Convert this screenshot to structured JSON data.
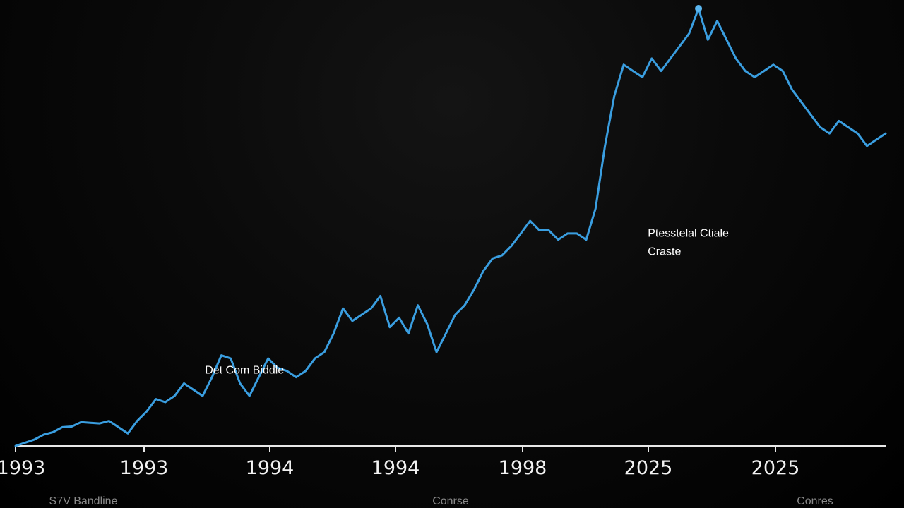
{
  "chart_data": {
    "type": "line",
    "grid": false,
    "x_tick_labels": [
      "1993",
      "1993",
      "1994",
      "1994",
      "1998",
      "2025",
      "2025"
    ],
    "annotations": [
      {
        "lines": [
          "Det Com Biddle"
        ],
        "x_index": 6.3,
        "y": 116
      },
      {
        "lines": [
          "Ptesstelal Ctiale",
          "Craste"
        ],
        "x_index": 20.5,
        "y": 335
      }
    ],
    "footer_labels": [
      "S7V Bandline",
      "Conrse",
      "Conres"
    ],
    "series": [
      {
        "color": "#3a9ee0",
        "x": [
          0,
          0.3,
          0.6,
          0.9,
          1.2,
          1.5,
          1.8,
          2.1,
          2.4,
          2.7,
          3.0,
          3.3,
          3.6,
          3.9,
          4.2,
          4.5,
          4.8,
          5.1,
          5.4,
          5.7,
          6.0,
          6.3,
          6.6,
          6.9,
          7.2,
          7.5,
          7.8,
          8.1,
          8.4,
          8.7,
          9.0,
          9.3,
          9.6,
          9.9,
          10.2,
          10.5,
          10.8,
          11.1,
          11.4,
          11.7,
          12.0,
          12.3,
          12.6,
          12.9,
          13.2,
          13.5,
          13.8,
          14.1,
          14.4,
          14.7,
          15.0,
          15.3,
          15.6,
          15.9,
          16.2,
          16.5,
          16.8,
          17.1,
          17.4,
          17.7,
          18.0,
          18.3,
          18.6,
          18.9,
          19.2,
          19.5,
          19.8,
          20.1,
          20.4,
          20.7,
          21.0,
          21.3,
          21.6,
          21.9,
          22.2,
          22.5,
          22.8,
          23.1,
          23.4,
          23.7,
          24.0,
          24.3,
          24.6,
          24.9,
          25.2,
          25.5,
          25.8,
          26.1,
          26.4,
          26.7,
          27.0,
          27.3,
          27.6,
          27.9
        ],
        "y": [
          0,
          5,
          10,
          18,
          22,
          30,
          31,
          38,
          37,
          36,
          40,
          30,
          20,
          40,
          55,
          75,
          70,
          80,
          100,
          90,
          80,
          110,
          145,
          140,
          100,
          80,
          110,
          140,
          125,
          120,
          110,
          120,
          140,
          150,
          180,
          220,
          200,
          210,
          220,
          240,
          190,
          205,
          180,
          225,
          195,
          150,
          180,
          210,
          225,
          250,
          280,
          300,
          305,
          320,
          340,
          360,
          345,
          345,
          330,
          340,
          340,
          330,
          380,
          480,
          560,
          610,
          600,
          590,
          620,
          600,
          620,
          640,
          660,
          700,
          650,
          680,
          650,
          620,
          600,
          590,
          600,
          610,
          600,
          570,
          550,
          530,
          510,
          500,
          520,
          510,
          500,
          480,
          490,
          500
        ]
      }
    ]
  }
}
